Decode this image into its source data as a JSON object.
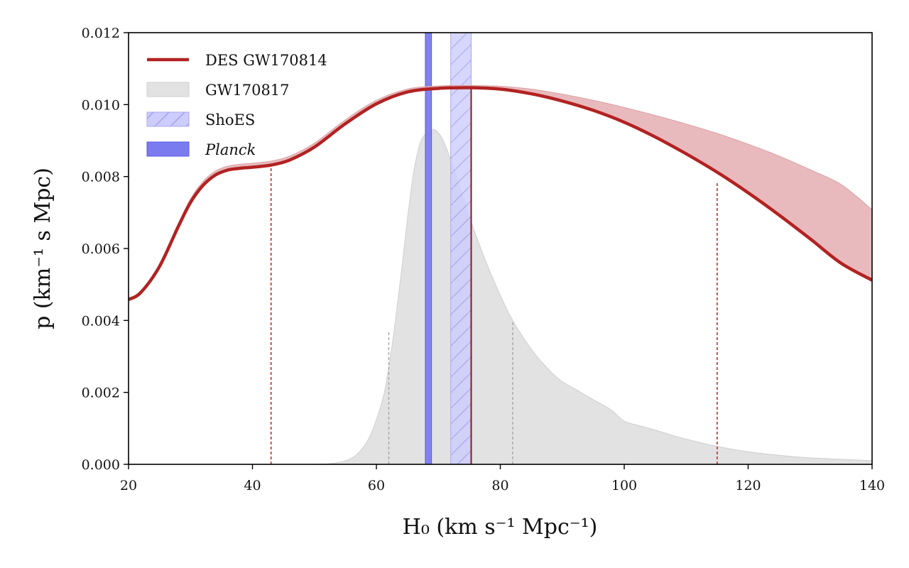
{
  "chart_data": {
    "type": "line",
    "title": "",
    "xlabel": "H₀ (km s⁻¹ Mpc⁻¹)",
    "ylabel": "p (km⁻¹ s Mpc)",
    "xlim": [
      20,
      140
    ],
    "ylim": [
      0,
      0.012
    ],
    "x_ticks": [
      "20",
      "40",
      "60",
      "80",
      "100",
      "120",
      "140"
    ],
    "y_ticks": [
      "0.000",
      "0.002",
      "0.004",
      "0.006",
      "0.008",
      "0.010",
      "0.012"
    ],
    "grid": false,
    "legend_position": "top-left",
    "legend": [
      {
        "label": "DES GW170814",
        "kind": "line",
        "color": "#b22222"
      },
      {
        "label": "GW170817",
        "kind": "fill",
        "color": "#e2e2e2"
      },
      {
        "label": "ShoES",
        "kind": "hatched-fill",
        "color": "#ccccff"
      },
      {
        "label": "Planck",
        "kind": "fill",
        "color": "#7b7bf0",
        "italic": true
      }
    ],
    "series": [
      {
        "name": "DES GW170814",
        "color": "#b22222",
        "x": [
          20,
          22,
          25,
          28,
          30,
          32,
          34,
          36,
          38,
          40,
          43,
          46,
          50,
          55,
          60,
          65,
          70,
          75,
          80,
          85,
          90,
          95,
          100,
          105,
          110,
          115,
          120,
          125,
          130,
          135,
          140
        ],
        "y": [
          0.00458,
          0.00478,
          0.0055,
          0.0066,
          0.00728,
          0.00775,
          0.00804,
          0.00818,
          0.00823,
          0.00826,
          0.00832,
          0.00846,
          0.00882,
          0.00947,
          0.01002,
          0.01035,
          0.01045,
          0.01047,
          0.01043,
          0.0103,
          0.0101,
          0.00984,
          0.00951,
          0.0091,
          0.00863,
          0.00812,
          0.00755,
          0.00693,
          0.00627,
          0.00559,
          0.00512
        ],
        "upper": [
          0.00462,
          0.00482,
          0.00556,
          0.00668,
          0.00738,
          0.00786,
          0.00815,
          0.00829,
          0.00834,
          0.00837,
          0.00843,
          0.00857,
          0.00893,
          0.00958,
          0.01012,
          0.01043,
          0.01052,
          0.01053,
          0.01051,
          0.01043,
          0.01029,
          0.01012,
          0.00992,
          0.0097,
          0.00946,
          0.0092,
          0.0089,
          0.00857,
          0.00819,
          0.00778,
          0.00708
        ]
      },
      {
        "name": "GW170817",
        "color": "#e2e2e2",
        "x": [
          20,
          40,
          50,
          53,
          55,
          57,
          59,
          61,
          62,
          63,
          64,
          65,
          66,
          67,
          68,
          69,
          69.6,
          70.5,
          71.5,
          72.5,
          74,
          76,
          78,
          80,
          82,
          85,
          88,
          90,
          92,
          95,
          98,
          100,
          103,
          106,
          110,
          115,
          120,
          125,
          130,
          135,
          140
        ],
        "y": [
          0,
          0,
          0,
          3e-05,
          0.0001,
          0.0003,
          0.0008,
          0.0018,
          0.0027,
          0.0039,
          0.0053,
          0.0068,
          0.0081,
          0.0089,
          0.0092,
          0.0093,
          0.00928,
          0.0091,
          0.0087,
          0.0082,
          0.0074,
          0.0064,
          0.0055,
          0.0047,
          0.004,
          0.0032,
          0.0026,
          0.0023,
          0.0021,
          0.0018,
          0.0015,
          0.0012,
          0.00105,
          0.0009,
          0.0007,
          0.0005,
          0.00035,
          0.00025,
          0.00018,
          0.00014,
          0.0001
        ]
      }
    ],
    "bands": [
      {
        "name": "ShoES",
        "x_range": [
          72,
          75.3
        ],
        "color": "#ccccff",
        "hatched": true
      },
      {
        "name": "Planck",
        "x_range": [
          67.9,
          68.9
        ],
        "color": "#7b7bf0"
      }
    ],
    "markers": [
      {
        "x": 43,
        "y_top": 0.00832,
        "color": "#b22222",
        "style": "dashed"
      },
      {
        "x": 115,
        "y_top": 0.00785,
        "color": "#b22222",
        "style": "dashed"
      },
      {
        "x": 75.3,
        "y_top": 0.01047,
        "color": "#8b1a1a",
        "style": "solid"
      },
      {
        "x": 62,
        "y_top": 0.0037,
        "color": "#aaaaaa",
        "style": "dashed"
      },
      {
        "x": 82,
        "y_top": 0.004,
        "color": "#aaaaaa",
        "style": "dashed"
      }
    ]
  }
}
